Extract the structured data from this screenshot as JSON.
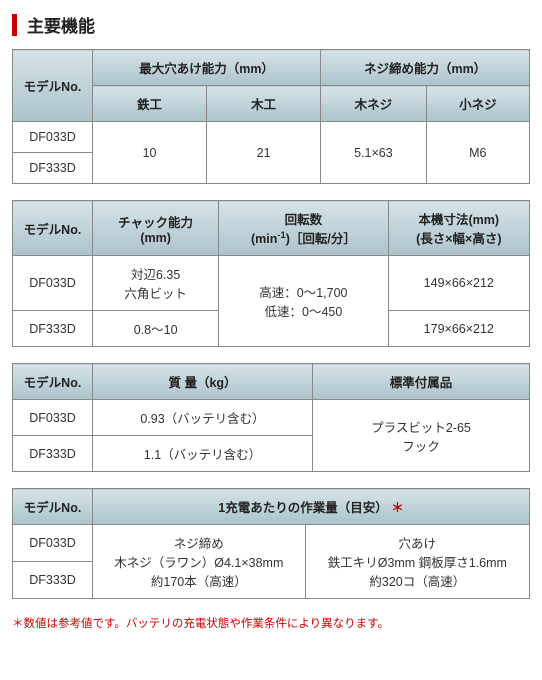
{
  "title": "主要機能",
  "table1": {
    "h_model": "モデルNo.",
    "h_group1": "最大穴あけ能力（mm）",
    "h_group2": "ネジ締め能力（mm）",
    "h_c1": "鉄工",
    "h_c2": "木工",
    "h_c3": "木ネジ",
    "h_c4": "小ネジ",
    "r1_model": "DF033D",
    "r2_model": "DF333D",
    "v_c1": "10",
    "v_c2": "21",
    "v_c3": "5.1×63",
    "v_c4": "M6"
  },
  "table2": {
    "h_model": "モデルNo.",
    "h_chuck": "チャック能力\n(mm)",
    "h_rpm_a": "回転数",
    "h_rpm_b": "(min",
    "h_rpm_sup": "-1",
    "h_rpm_c": ")［回転/分］",
    "h_dim": "本機寸法(mm)\n(長さ×幅×高さ)",
    "r1_model": "DF033D",
    "r1_chuck": "対辺6.35\n六角ビット",
    "rpm": "高速：0～1,700\n低速：0～450",
    "r1_dim": "149×66×212",
    "r2_model": "DF333D",
    "r2_chuck": "0.8～10",
    "r2_dim": "179×66×212"
  },
  "table3": {
    "h_model": "モデルNo.",
    "h_mass": "質 量（kg）",
    "h_acc": "標準付属品",
    "r1_model": "DF033D",
    "r1_mass": "0.93（バッテリ含む）",
    "acc": "プラスビット2-65\nフック",
    "r2_model": "DF333D",
    "r2_mass": "1.1（バッテリ含む）"
  },
  "table4": {
    "h_model": "モデルNo.",
    "h_work": "1充電あたりの作業量（目安）",
    "h_ast": "＊",
    "r1_model": "DF033D",
    "v_screw": "ネジ締め\n木ネジ（ラワン）Ø4.1×38mm\n約170本（高速）",
    "v_drill": "穴あけ\n鉄工キリØ3mm 鋼板厚さ1.6mm\n約320コ（高速）",
    "r2_model": "DF333D"
  },
  "footnote": "＊数値は参考値です。バッテリの充電状態や作業条件により異なります。"
}
